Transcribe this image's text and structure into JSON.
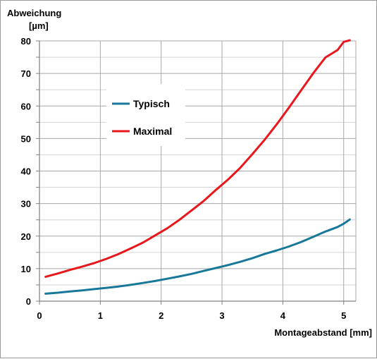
{
  "chart_data": {
    "type": "line",
    "ylabel_line1": "Abweichung",
    "ylabel_line2": "[µm]",
    "xlabel": "Montageabstand [mm]",
    "xlim": [
      0,
      5.2
    ],
    "ylim": [
      0,
      80
    ],
    "x_ticks": [
      "0",
      "1",
      "2",
      "3",
      "4",
      "5"
    ],
    "y_ticks": [
      "0",
      "10",
      "20",
      "30",
      "40",
      "50",
      "60",
      "70",
      "80"
    ],
    "grid": true,
    "legend_position": "upper-left-center",
    "series": [
      {
        "name": "Typisch",
        "color": "#17789a",
        "x": [
          0.1,
          0.3,
          0.5,
          0.7,
          0.9,
          1.1,
          1.3,
          1.5,
          1.7,
          1.9,
          2.1,
          2.3,
          2.5,
          2.7,
          2.9,
          3.1,
          3.3,
          3.5,
          3.7,
          3.9,
          4.1,
          4.3,
          4.5,
          4.7,
          4.9,
          5.0,
          5.1
        ],
        "values": [
          2.3,
          2.6,
          3.0,
          3.3,
          3.7,
          4.1,
          4.5,
          5.0,
          5.6,
          6.2,
          6.9,
          7.6,
          8.4,
          9.3,
          10.2,
          11.1,
          12.1,
          13.2,
          14.5,
          15.6,
          16.8,
          18.2,
          19.8,
          21.4,
          22.8,
          23.8,
          25.1
        ]
      },
      {
        "name": "Maximal",
        "color": "#e8171c",
        "x": [
          0.1,
          0.3,
          0.5,
          0.7,
          0.9,
          1.1,
          1.3,
          1.5,
          1.7,
          1.9,
          2.1,
          2.3,
          2.5,
          2.7,
          2.9,
          3.1,
          3.3,
          3.5,
          3.7,
          3.9,
          4.1,
          4.3,
          4.5,
          4.7,
          4.9,
          5.0,
          5.1
        ],
        "values": [
          7.5,
          8.5,
          9.6,
          10.6,
          11.7,
          13.0,
          14.5,
          16.2,
          18.0,
          20.2,
          22.4,
          25.0,
          27.9,
          30.8,
          34.2,
          37.4,
          41.0,
          45.2,
          49.6,
          54.4,
          59.5,
          64.8,
          70.1,
          74.9,
          77.2,
          79.7,
          81.3
        ]
      }
    ]
  }
}
